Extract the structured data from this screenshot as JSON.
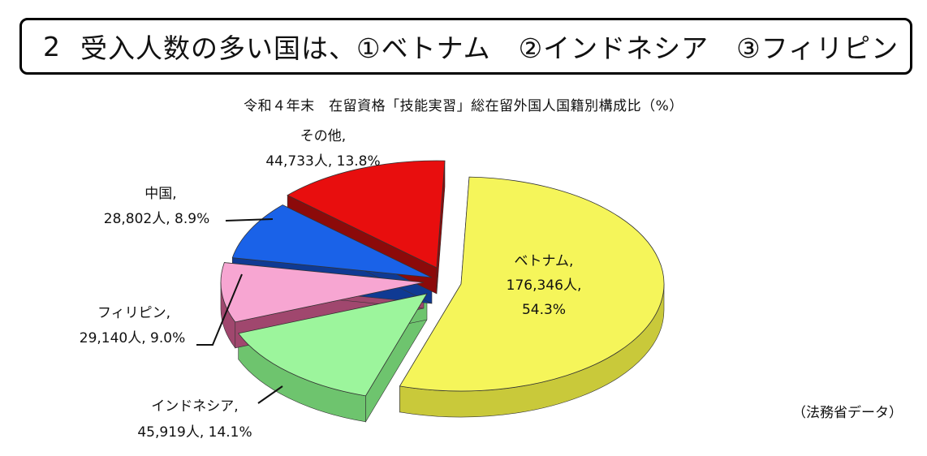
{
  "banner": {
    "number": "2",
    "text": "受入人数の多い国は、①ベトナム　②インドネシア　③フィリピン"
  },
  "source": "（法務省データ）",
  "chart_data": {
    "type": "pie",
    "title": "令和４年末　在留資格「技能実習」総在留外国人国籍別構成比（%）",
    "slices": [
      {
        "name": "ベトナム",
        "count": "176,346人",
        "percent": 54.3,
        "percent_label": "54.3%",
        "color": "#f5f55a",
        "side": "#c9c93a"
      },
      {
        "name": "インドネシア",
        "count": "45,919人",
        "percent": 14.1,
        "percent_label": "14.1%",
        "color": "#9cf59c",
        "side": "#6ec46e"
      },
      {
        "name": "フィリピン",
        "count": "29,140人",
        "percent": 9.0,
        "percent_label": "9.0%",
        "color": "#f7a6d2",
        "side": "#a0476e"
      },
      {
        "name": "中国",
        "count": "28,802人",
        "percent": 8.9,
        "percent_label": "8.9%",
        "color": "#1a62e8",
        "side": "#0f3a93"
      },
      {
        "name": "その他",
        "count": "44,733人",
        "percent": 13.8,
        "percent_label": "13.8%",
        "color": "#e80e0e",
        "side": "#8c0a0a"
      }
    ]
  }
}
